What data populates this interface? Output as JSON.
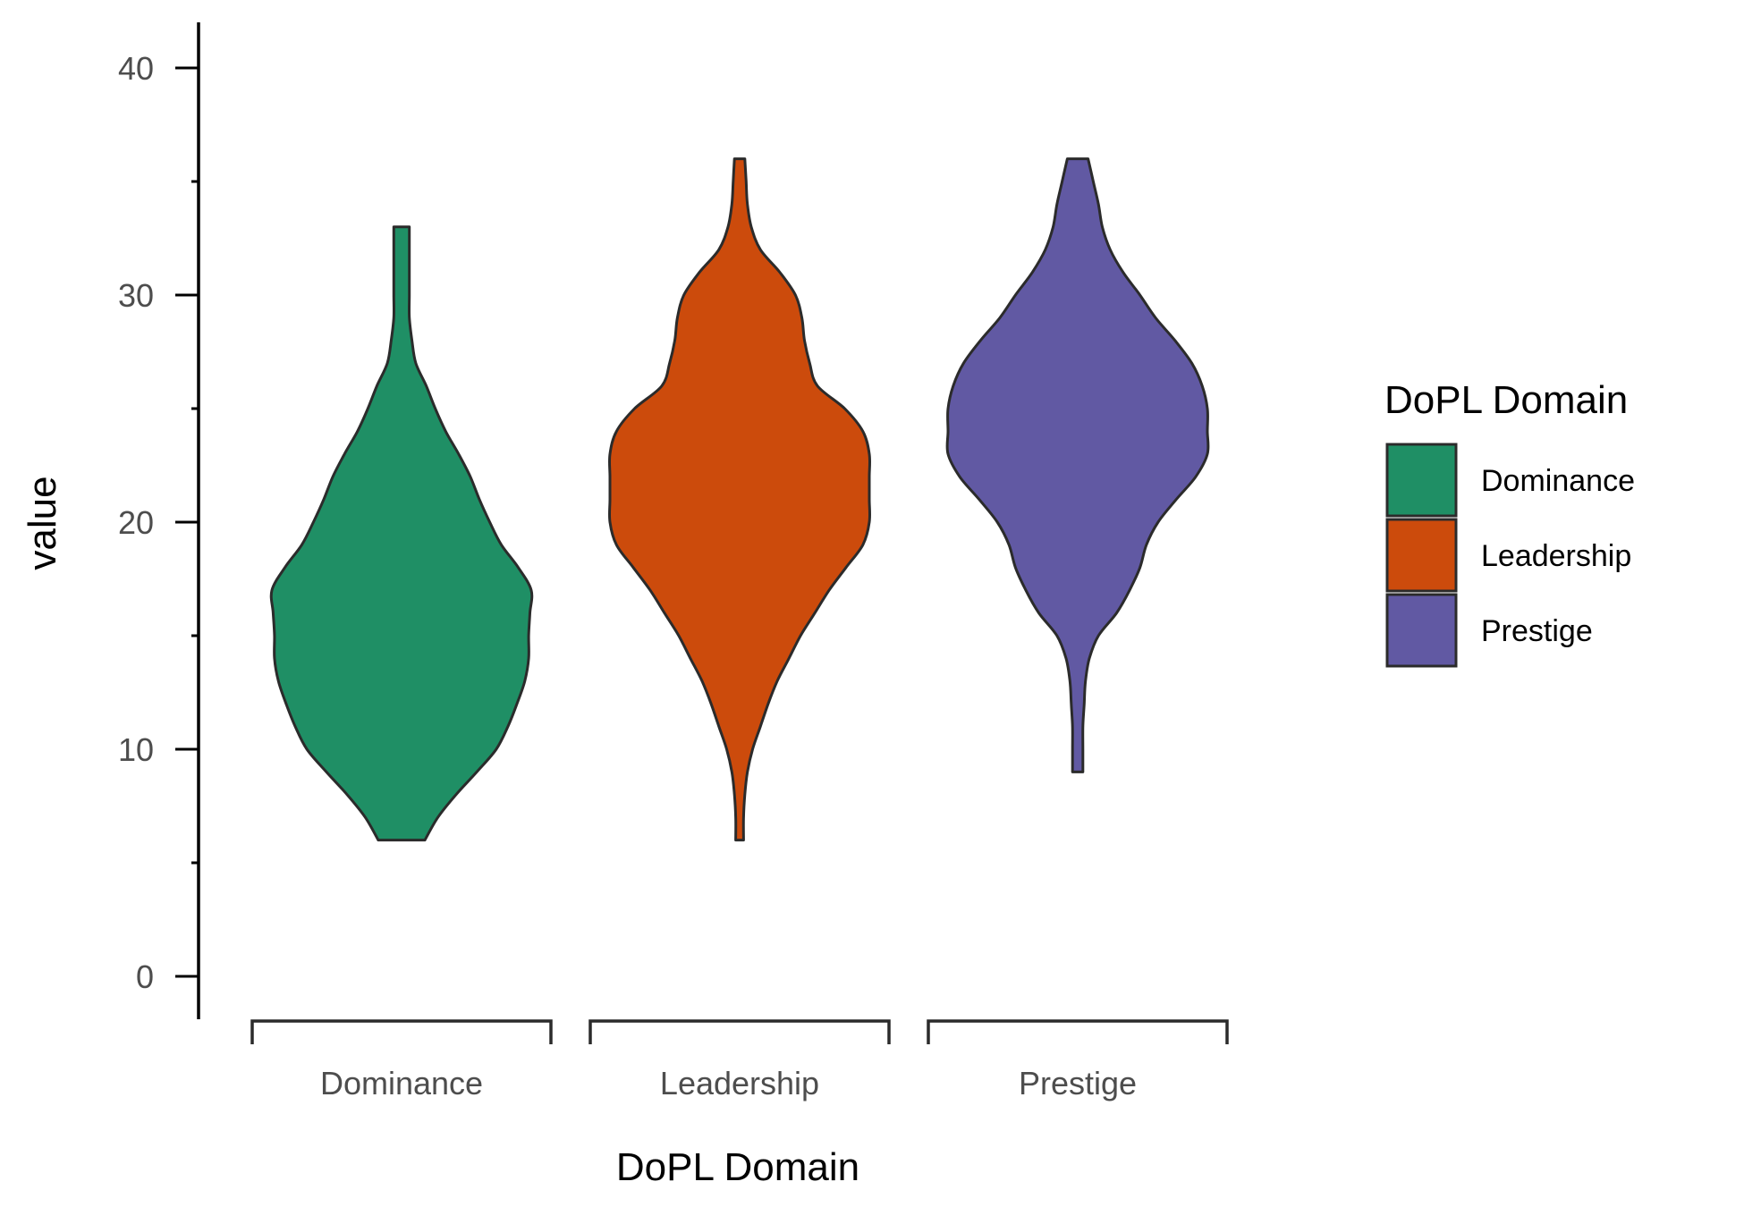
{
  "chart_data": {
    "type": "violin",
    "xlabel": "DoPL Domain",
    "ylabel": "value",
    "ylim": [
      0,
      40
    ],
    "yticks": [
      "0",
      "10",
      "20",
      "30",
      "40"
    ],
    "categories": [
      "Dominance",
      "Leadership",
      "Prestige"
    ],
    "legend": {
      "title": "DoPL Domain",
      "position": "right",
      "items": [
        "Dominance",
        "Leadership",
        "Prestige"
      ]
    },
    "colors": {
      "Dominance": "#1f8f65",
      "Leadership": "#cc4b0c",
      "Prestige": "#6159a3",
      "outline": "#2b2b2b"
    },
    "series": [
      {
        "name": "Dominance",
        "min": 6,
        "max": 33,
        "profile": [
          [
            6,
            0.18
          ],
          [
            7,
            0.28
          ],
          [
            8,
            0.42
          ],
          [
            9,
            0.58
          ],
          [
            10,
            0.73
          ],
          [
            11,
            0.82
          ],
          [
            12,
            0.89
          ],
          [
            13,
            0.95
          ],
          [
            14,
            0.98
          ],
          [
            15,
            0.98
          ],
          [
            16,
            0.99
          ],
          [
            17,
            1.0
          ],
          [
            18,
            0.9
          ],
          [
            19,
            0.77
          ],
          [
            20,
            0.68
          ],
          [
            21,
            0.6
          ],
          [
            22,
            0.53
          ],
          [
            23,
            0.44
          ],
          [
            24,
            0.34
          ],
          [
            25,
            0.26
          ],
          [
            26,
            0.19
          ],
          [
            27,
            0.11
          ],
          [
            28,
            0.08
          ],
          [
            29,
            0.06
          ],
          [
            30,
            0.06
          ],
          [
            31,
            0.06
          ],
          [
            32,
            0.06
          ],
          [
            33,
            0.06
          ]
        ]
      },
      {
        "name": "Leadership",
        "min": 6,
        "max": 36,
        "profile": [
          [
            6,
            0.03
          ],
          [
            7,
            0.03
          ],
          [
            8,
            0.04
          ],
          [
            9,
            0.06
          ],
          [
            10,
            0.1
          ],
          [
            11,
            0.16
          ],
          [
            12,
            0.22
          ],
          [
            13,
            0.29
          ],
          [
            14,
            0.38
          ],
          [
            15,
            0.47
          ],
          [
            16,
            0.58
          ],
          [
            17,
            0.69
          ],
          [
            18,
            0.82
          ],
          [
            19,
            0.95
          ],
          [
            20,
            1.0
          ],
          [
            21,
            1.0
          ],
          [
            22,
            1.0
          ],
          [
            23,
            1.0
          ],
          [
            24,
            0.95
          ],
          [
            25,
            0.81
          ],
          [
            26,
            0.6
          ],
          [
            27,
            0.54
          ],
          [
            28,
            0.5
          ],
          [
            29,
            0.48
          ],
          [
            30,
            0.43
          ],
          [
            31,
            0.31
          ],
          [
            32,
            0.16
          ],
          [
            33,
            0.09
          ],
          [
            34,
            0.06
          ],
          [
            35,
            0.05
          ],
          [
            36,
            0.04
          ]
        ]
      },
      {
        "name": "Prestige",
        "min": 9,
        "max": 36,
        "profile": [
          [
            9,
            0.04
          ],
          [
            10,
            0.04
          ],
          [
            11,
            0.04
          ],
          [
            12,
            0.05
          ],
          [
            13,
            0.06
          ],
          [
            14,
            0.09
          ],
          [
            15,
            0.16
          ],
          [
            16,
            0.3
          ],
          [
            17,
            0.4
          ],
          [
            18,
            0.48
          ],
          [
            19,
            0.53
          ],
          [
            20,
            0.62
          ],
          [
            21,
            0.76
          ],
          [
            22,
            0.91
          ],
          [
            23,
            1.0
          ],
          [
            24,
            1.0
          ],
          [
            25,
            1.0
          ],
          [
            26,
            0.96
          ],
          [
            27,
            0.88
          ],
          [
            28,
            0.75
          ],
          [
            29,
            0.6
          ],
          [
            30,
            0.48
          ],
          [
            31,
            0.35
          ],
          [
            32,
            0.25
          ],
          [
            33,
            0.19
          ],
          [
            34,
            0.16
          ],
          [
            35,
            0.12
          ],
          [
            36,
            0.08
          ]
        ]
      }
    ]
  }
}
